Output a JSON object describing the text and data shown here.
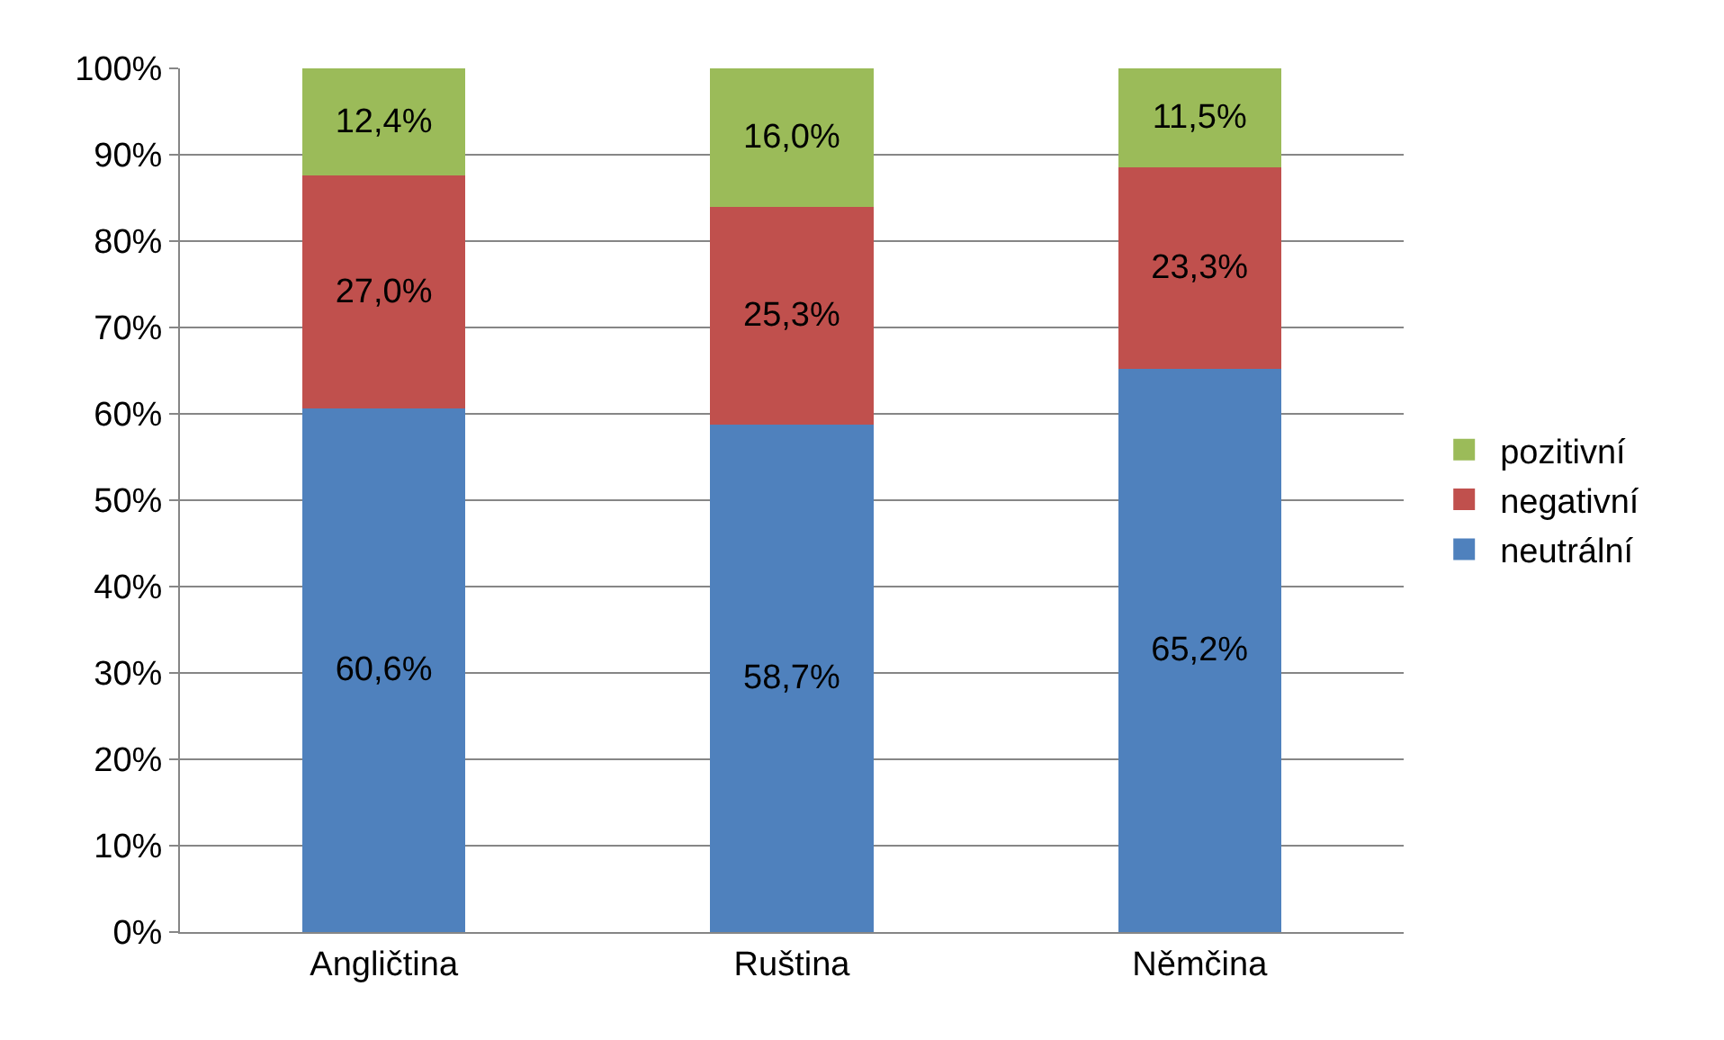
{
  "chart_data": {
    "type": "bar",
    "stacked": true,
    "categories": [
      "Angličtina",
      "Ruština",
      "Němčina"
    ],
    "series": [
      {
        "name": "neutrální",
        "color": "#4f81bd",
        "values": [
          60.6,
          58.7,
          65.2
        ],
        "value_labels": [
          "60,6%",
          "58,7%",
          "65,2%"
        ]
      },
      {
        "name": "negativní",
        "color": "#c0504d",
        "values": [
          27.0,
          25.3,
          23.3
        ],
        "value_labels": [
          "27,0%",
          "25,3%",
          "23,3%"
        ]
      },
      {
        "name": "pozitivní",
        "color": "#9bbb59",
        "values": [
          12.4,
          16.0,
          11.5
        ],
        "value_labels": [
          "12,4%",
          "16,0%",
          "11,5%"
        ]
      }
    ],
    "ylim": [
      0,
      100
    ],
    "yticks": [
      {
        "value": 0,
        "label": "0%"
      },
      {
        "value": 10,
        "label": "10%"
      },
      {
        "value": 20,
        "label": "20%"
      },
      {
        "value": 30,
        "label": "30%"
      },
      {
        "value": 40,
        "label": "40%"
      },
      {
        "value": 50,
        "label": "50%"
      },
      {
        "value": 60,
        "label": "60%"
      },
      {
        "value": 70,
        "label": "70%"
      },
      {
        "value": 80,
        "label": "80%"
      },
      {
        "value": 90,
        "label": "90%"
      },
      {
        "value": 100,
        "label": "100%"
      }
    ],
    "grid": "y",
    "legend": "right"
  }
}
